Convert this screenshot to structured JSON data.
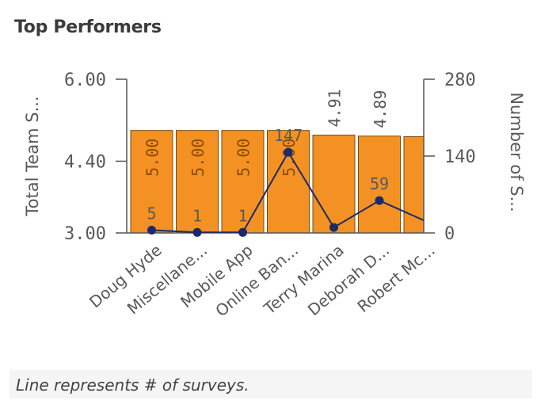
{
  "title": "Top Performers",
  "footnote": "Line represents # of surveys.",
  "colors": {
    "bar": "#F39222",
    "bar_border": "#7a4a10",
    "line": "#1b2a6b",
    "axis": "#555555",
    "text": "#595959"
  },
  "chart_data": {
    "type": "bar",
    "categories": [
      "Doug Hyde",
      "Miscellane...",
      "Mobile App",
      "Online Ban...",
      "Terry Marina",
      "Deborah D...",
      "Robert Mc..."
    ],
    "y_left": {
      "label": "Total Team S...",
      "ylim": [
        3.0,
        6.0
      ],
      "ticks": [
        "3.00",
        "4.40",
        "6.00"
      ]
    },
    "y_right": {
      "label": "Number of S...",
      "ylim": [
        0,
        280
      ],
      "ticks": [
        "0",
        "140",
        "280"
      ]
    },
    "series": [
      {
        "type": "bar",
        "axis": "left",
        "values": [
          5.0,
          5.0,
          5.0,
          5.0,
          4.91,
          4.89,
          4.88
        ],
        "labels": [
          "5.00",
          "5.00",
          "5.00",
          "5.00",
          "4.91",
          "4.89",
          ""
        ]
      },
      {
        "type": "line",
        "axis": "right",
        "values": [
          5,
          1,
          1,
          147,
          10,
          59,
          22
        ],
        "labels": [
          "5",
          "1",
          "1",
          "147",
          "",
          "59",
          ""
        ]
      }
    ],
    "grid": false
  }
}
